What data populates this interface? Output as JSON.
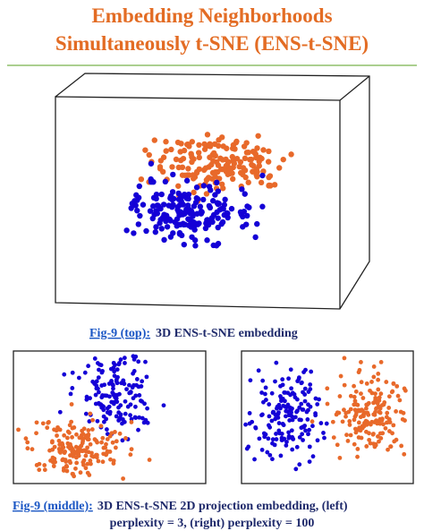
{
  "title": {
    "line1": "Embedding Neighborhoods",
    "line2": "Simultaneously t-SNE (ENS-t-SNE)"
  },
  "captions": [
    {
      "label": "Fig-9 (top):",
      "text": "3D ENS-t-SNE embedding"
    },
    {
      "label": "Fig-9 (middle):",
      "text": "3D ENS-t-SNE 2D projection embedding, (left)",
      "text2": "perplexity = 3, (right) perplexity = 100"
    }
  ]
}
